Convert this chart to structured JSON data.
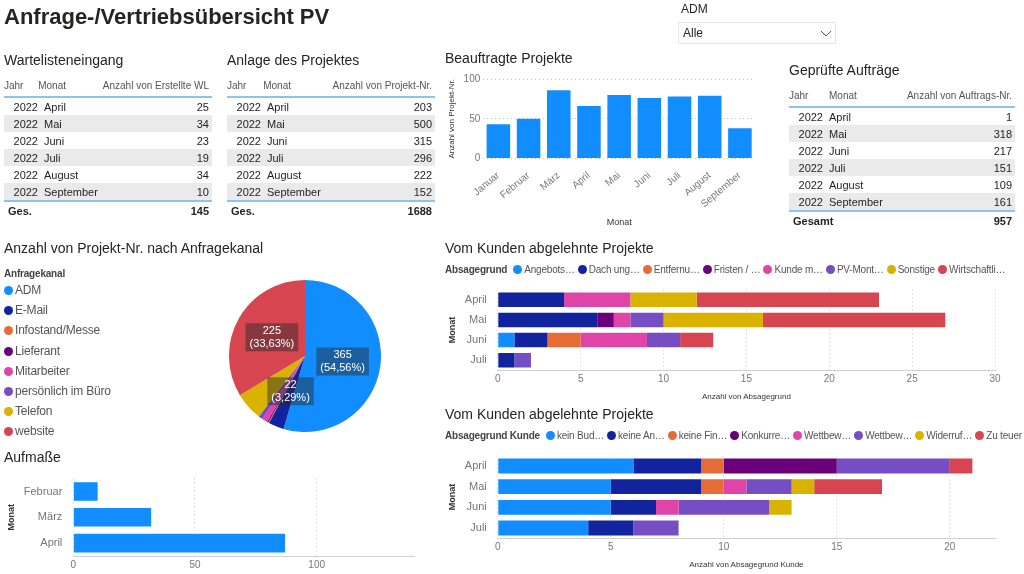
{
  "chart_data": [
    {
      "type": "other",
      "title": "Anfrage-/Vertriebsübersicht PV",
      "annotations": [
        "ADM",
        "Alle"
      ]
    },
    {
      "type": "other",
      "title": "Wartelisteneingang",
      "annotations": [
        "Jahr",
        "Monat",
        "Anzahl von Erstellte WL",
        "2022",
        "April",
        "25",
        "2022",
        "Mai",
        "34",
        "2022",
        "Juni",
        "23",
        "2022",
        "Juli",
        "19",
        "2022",
        "August",
        "34",
        "2022",
        "September",
        "10",
        "Ges.",
        "145"
      ]
    },
    {
      "type": "other",
      "title": "Anlage des Projektes",
      "annotations": [
        "Jahr",
        "Monat",
        "Anzahl von Projekt-Nr.",
        "2022",
        "April",
        "203",
        "2022",
        "Mai",
        "500",
        "2022",
        "Juni",
        "315",
        "2022",
        "Juli",
        "296",
        "2022",
        "August",
        "222",
        "2022",
        "September",
        "152",
        "Ges.",
        "1688"
      ]
    },
    {
      "type": "bar",
      "title": "Beauftragte Projekte",
      "xlabel": "Monat",
      "ylabel": "Anzahl von Projekt-Nr.",
      "categories": [
        "Januar",
        "Februar",
        "März",
        "April",
        "Mai",
        "Juni",
        "Juli",
        "August",
        "September"
      ],
      "values": [
        43,
        50,
        86,
        66,
        80,
        76,
        78,
        79,
        38
      ],
      "color": "#118dff",
      "ylim": [
        0,
        100
      ],
      "yticks": [
        0,
        50,
        100
      ],
      "grid": "y"
    },
    {
      "type": "other",
      "title": "Geprüfte Aufträge",
      "annotations": [
        "Jahr",
        "Monat",
        "Anzahl von Auftrags-Nr.",
        "2022",
        "April",
        "1",
        "2022",
        "Mai",
        "318",
        "2022",
        "Juni",
        "217",
        "2022",
        "Juli",
        "151",
        "2022",
        "August",
        "109",
        "2022",
        "September",
        "161",
        "Gesamt",
        "957"
      ]
    },
    {
      "type": "pie",
      "title": "Anzahl von Projekt-Nr. nach Anfragekanal",
      "legend_title": "Anfragekanal",
      "legend": "left",
      "categories": [
        "ADM",
        "E-Mail",
        "Infostand/Messe",
        "Lieferant",
        "Mitarbeiter",
        "persönlich im Büro",
        "Telefon",
        "website"
      ],
      "values": [
        365,
        22,
        1,
        2,
        8,
        6,
        40,
        225
      ],
      "colors": [
        "#118dff",
        "#12239e",
        "#e66c37",
        "#6b007b",
        "#e044a7",
        "#744ec2",
        "#d9b300",
        "#d64550"
      ],
      "value_labels": [
        "365 (54,56%)",
        "22 (3,29%)",
        null,
        null,
        null,
        null,
        null,
        "225 (33,63%)"
      ]
    },
    {
      "type": "bar",
      "title": "Vom Kunden abgelehnte Projekte",
      "legend_title": "Absagegrund",
      "legend": "top",
      "xlabel": "Anzahl von Absagegrund",
      "ylabel": "Monat",
      "orientation": "horizontal",
      "stacked": true,
      "categories": [
        "April",
        "Mai",
        "Juni",
        "Juli"
      ],
      "xlim": [
        0,
        30
      ],
      "xticks": [
        0,
        5,
        10,
        15,
        20,
        25,
        30
      ],
      "grid": "x",
      "series": [
        {
          "name": "Angebots…",
          "color": "#118dff",
          "values": [
            0,
            0,
            1,
            0
          ]
        },
        {
          "name": "Dach ung…",
          "color": "#12239e",
          "values": [
            4,
            6,
            2,
            1
          ]
        },
        {
          "name": "Entfernu…",
          "color": "#e66c37",
          "values": [
            0,
            0,
            2,
            0
          ]
        },
        {
          "name": "Fristen / …",
          "color": "#6b007b",
          "values": [
            0,
            1,
            0,
            0
          ]
        },
        {
          "name": "Kunde m…",
          "color": "#e044a7",
          "values": [
            4,
            1,
            4,
            0
          ]
        },
        {
          "name": "PV-Mont…",
          "color": "#744ec2",
          "values": [
            0,
            2,
            2,
            1
          ]
        },
        {
          "name": "Sonstige",
          "color": "#d9b300",
          "values": [
            4,
            6,
            0,
            0
          ]
        },
        {
          "name": "Wirtschaftli…",
          "color": "#d64550",
          "values": [
            11,
            11,
            2,
            0
          ]
        }
      ]
    },
    {
      "type": "bar",
      "title": "Aufmaße",
      "ylabel": "Monat",
      "orientation": "horizontal",
      "categories": [
        "Februar",
        "März",
        "April"
      ],
      "values": [
        10,
        32,
        87
      ],
      "color": "#118dff",
      "xlim": [
        0,
        140
      ],
      "xticks": [
        0,
        50,
        100
      ],
      "grid": "x"
    },
    {
      "type": "bar",
      "title": "Vom Kunden abgelehnte Projekte",
      "legend_title": "Absagegrund Kunde",
      "legend": "top",
      "xlabel": "Anzahl von Absagegrund Kunde",
      "ylabel": "Monat",
      "orientation": "horizontal",
      "stacked": true,
      "categories": [
        "April",
        "Mai",
        "Juni",
        "Juli"
      ],
      "xlim": [
        0,
        22
      ],
      "xticks": [
        0,
        5,
        10,
        15,
        20
      ],
      "grid": "x",
      "series": [
        {
          "name": "kein Bud…",
          "color": "#118dff",
          "values": [
            6,
            5,
            5,
            4
          ]
        },
        {
          "name": "keine An…",
          "color": "#12239e",
          "values": [
            3,
            4,
            2,
            2
          ]
        },
        {
          "name": "keine Fin…",
          "color": "#e66c37",
          "values": [
            1,
            1,
            0,
            0
          ]
        },
        {
          "name": "Konkurre…",
          "color": "#6b007b",
          "values": [
            5,
            0,
            0,
            0
          ]
        },
        {
          "name": "Wettbew…",
          "color": "#e044a7",
          "values": [
            0,
            1,
            1,
            0
          ]
        },
        {
          "name": "Wettbew…",
          "color": "#744ec2",
          "values": [
            5,
            2,
            4,
            2
          ]
        },
        {
          "name": "Widerruf…",
          "color": "#d9b300",
          "values": [
            0,
            1,
            1,
            0
          ]
        },
        {
          "name": "Zu teuer",
          "color": "#d64550",
          "values": [
            1,
            3,
            0,
            0
          ]
        }
      ]
    }
  ]
}
